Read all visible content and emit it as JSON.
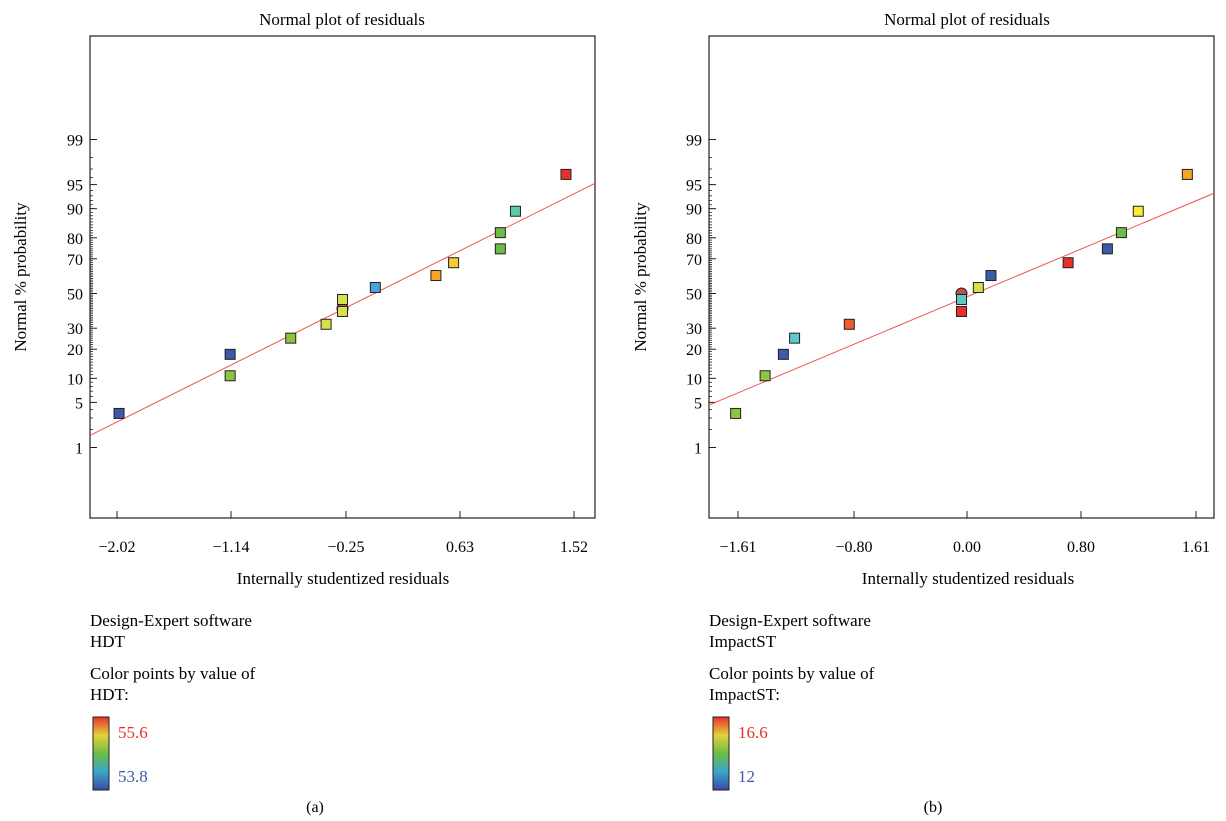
{
  "figure": {
    "charts_count": 2
  },
  "chart_data": [
    {
      "type": "scatter",
      "title": "Normal plot of residuals",
      "xlabel": "Internally studentized residuals",
      "ylabel": "Normal % probability",
      "panel_label": "(a)",
      "x_ticks": [
        "−2.02",
        "−1.14",
        "−0.25",
        "0.63",
        "1.52"
      ],
      "y_ticks": [
        "1",
        "5",
        "10",
        "20",
        "30",
        "50",
        "70",
        "80",
        "90",
        "95",
        "99"
      ],
      "y_scale": "normal-probability",
      "xlim": [
        -2.25,
        1.75
      ],
      "fit_line": {
        "x": [
          -2.25,
          1.75
        ],
        "y": [
          1.6,
          95.2
        ],
        "color": "#f0524f"
      },
      "points": [
        {
          "x": -2.02,
          "y": 3.5,
          "color": "#3b5ba9"
        },
        {
          "x": -1.14,
          "y": 10.7,
          "color": "#8cc63f"
        },
        {
          "x": -1.14,
          "y": 17.9,
          "color": "#3b5ba9"
        },
        {
          "x": -0.66,
          "y": 25.0,
          "color": "#8cc63f"
        },
        {
          "x": -0.38,
          "y": 32.1,
          "color": "#d7e04a"
        },
        {
          "x": -0.25,
          "y": 39.3,
          "color": "#d7e04a"
        },
        {
          "x": -0.25,
          "y": 46.4,
          "color": "#d7e04a"
        },
        {
          "x": 0.01,
          "y": 53.6,
          "color": "#4aa3d8"
        },
        {
          "x": 0.49,
          "y": 60.7,
          "color": "#f7a528"
        },
        {
          "x": 0.63,
          "y": 67.9,
          "color": "#f7c935"
        },
        {
          "x": 1.0,
          "y": 75.0,
          "color": "#6cbd45"
        },
        {
          "x": 1.0,
          "y": 82.1,
          "color": "#6cbd45"
        },
        {
          "x": 1.12,
          "y": 89.3,
          "color": "#5fc9a8"
        },
        {
          "x": 1.52,
          "y": 96.4,
          "color": "#e8302a"
        }
      ],
      "center_marker": {
        "x": -0.25,
        "y": 41.0
      },
      "legend": {
        "software": "Design-Expert software",
        "response": "HDT",
        "color_by_line1": "Color points by value of",
        "color_by_line2": "HDT:",
        "max_label": "55.6",
        "min_label": "53.8",
        "max_color": "#e8302a",
        "min_color": "#3b5ba9"
      }
    },
    {
      "type": "scatter",
      "title": "Normal plot of residuals",
      "xlabel": "Internally studentized residuals",
      "ylabel": "Normal % probability",
      "panel_label": "(b)",
      "x_ticks": [
        "−1.61",
        "−0.80",
        "0.00",
        "0.80",
        "1.61"
      ],
      "y_ticks": [
        "1",
        "5",
        "10",
        "20",
        "30",
        "50",
        "70",
        "80",
        "90",
        "95",
        "99"
      ],
      "y_scale": "normal-probability",
      "xlim": [
        -1.8,
        1.8
      ],
      "fit_line": {
        "x": [
          -1.8,
          1.8
        ],
        "y": [
          4.6,
          93.5
        ],
        "color": "#f0524f"
      },
      "points": [
        {
          "x": -1.61,
          "y": 3.5,
          "color": "#8cc63f"
        },
        {
          "x": -1.4,
          "y": 10.7,
          "color": "#8cc63f"
        },
        {
          "x": -1.27,
          "y": 17.9,
          "color": "#3b5ba9"
        },
        {
          "x": -1.19,
          "y": 25.0,
          "color": "#5fc9c9"
        },
        {
          "x": -0.8,
          "y": 32.1,
          "color": "#f15a2b"
        },
        {
          "x": 0.0,
          "y": 39.3,
          "color": "#e8302a"
        },
        {
          "x": 0.0,
          "y": 46.4,
          "color": "#5fc9c9"
        },
        {
          "x": 0.12,
          "y": 53.6,
          "color": "#d7e04a"
        },
        {
          "x": 0.21,
          "y": 60.7,
          "color": "#3b5ba9"
        },
        {
          "x": 0.76,
          "y": 67.9,
          "color": "#e8302a"
        },
        {
          "x": 1.04,
          "y": 75.0,
          "color": "#3b5ba9"
        },
        {
          "x": 1.14,
          "y": 82.1,
          "color": "#6cbd45"
        },
        {
          "x": 1.26,
          "y": 89.3,
          "color": "#f7ec35"
        },
        {
          "x": 1.61,
          "y": 96.4,
          "color": "#f7a528"
        }
      ],
      "center_marker": {
        "x": 0.0,
        "y": 50.0
      },
      "legend": {
        "software": "Design-Expert software",
        "response": "ImpactST",
        "color_by_line1": "Color points by value of",
        "color_by_line2": "ImpactST:",
        "max_label": "16.6",
        "min_label": "12",
        "max_color": "#e8302a",
        "min_color": "#3b5ba9"
      }
    }
  ]
}
